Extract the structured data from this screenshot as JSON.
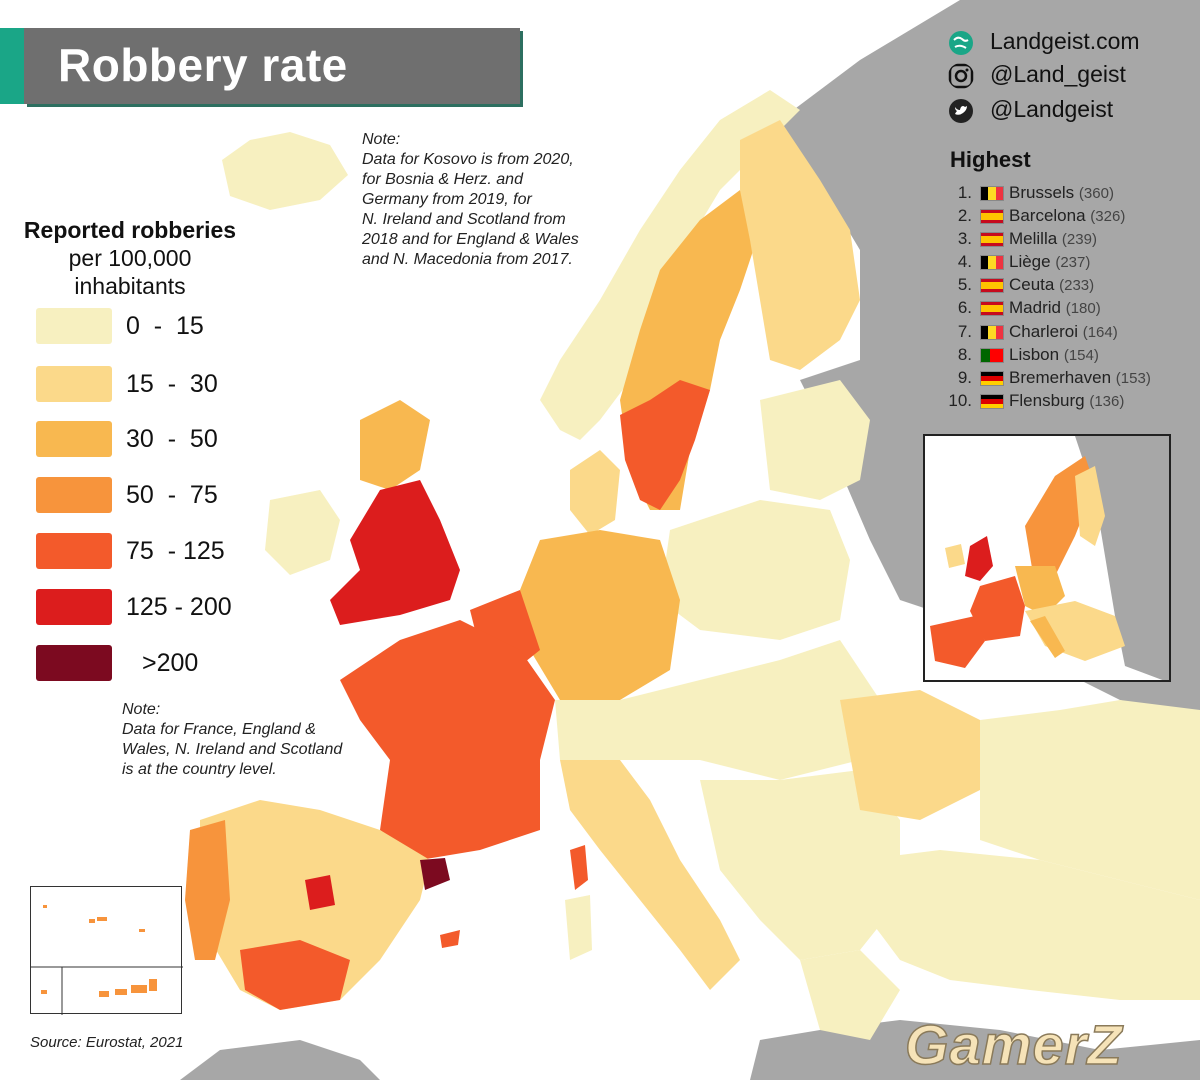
{
  "title": "Robbery rate",
  "note_top": "Note:\nData for Kosovo is from 2020,\nfor Bosnia & Herz. and\nGermany from 2019, for\nN. Ireland and Scotland from\n2018 and for England & Wales\nand N. Macedonia from 2017.",
  "note_bottom": "Note:\nData for France, England &\nWales, N. Ireland and Scotland\nis at the country level.",
  "legend": {
    "title_bold": "Reported robberies",
    "title_rest": "per 100,000\ninhabitants",
    "items": [
      {
        "label": "0  -  15",
        "color": "#f7f0c0"
      },
      {
        "label": "15  -  30",
        "color": "#fbd98a"
      },
      {
        "label": "30  -  50",
        "color": "#f8b850"
      },
      {
        "label": "50  -  75",
        "color": "#f7943c"
      },
      {
        "label": "75  - 125",
        "color": "#f35a2b"
      },
      {
        "label": "125 - 200",
        "color": "#dc1d1d"
      },
      {
        "label": ">200",
        "color": "#7c0a20"
      }
    ]
  },
  "social": [
    {
      "icon": "globe-icon",
      "text": "Landgeist.com"
    },
    {
      "icon": "instagram-icon",
      "text": "@Land_geist"
    },
    {
      "icon": "twitter-icon",
      "text": "@Landgeist"
    }
  ],
  "highest": {
    "title": "Highest",
    "items": [
      {
        "rank": "1.",
        "city": "Brussels",
        "value": "(360)",
        "flag": "belgium-flag-icon"
      },
      {
        "rank": "2.",
        "city": "Barcelona",
        "value": "(326)",
        "flag": "spain-flag-icon"
      },
      {
        "rank": "3.",
        "city": "Melilla",
        "value": "(239)",
        "flag": "spain-flag-icon"
      },
      {
        "rank": "4.",
        "city": "Liège",
        "value": "(237)",
        "flag": "belgium-flag-icon"
      },
      {
        "rank": "5.",
        "city": "Ceuta",
        "value": "(233)",
        "flag": "spain-flag-icon"
      },
      {
        "rank": "6.",
        "city": "Madrid",
        "value": "(180)",
        "flag": "spain-flag-icon"
      },
      {
        "rank": "7.",
        "city": "Charleroi",
        "value": "(164)",
        "flag": "belgium-flag-icon"
      },
      {
        "rank": "8.",
        "city": "Lisbon",
        "value": "(154)",
        "flag": "portugal-flag-icon"
      },
      {
        "rank": "9.",
        "city": "Bremerhaven",
        "value": "(153)",
        "flag": "germany-flag-icon"
      },
      {
        "rank": "10.",
        "city": "Flensburg",
        "value": "(136)",
        "flag": "germany-flag-icon"
      }
    ]
  },
  "source": "Source: Eurostat, 2021",
  "watermark": "GamerZ",
  "colors": {
    "sea": "#ffffff",
    "non_eu": "#a7a7a7",
    "accent": "#1aa687"
  }
}
